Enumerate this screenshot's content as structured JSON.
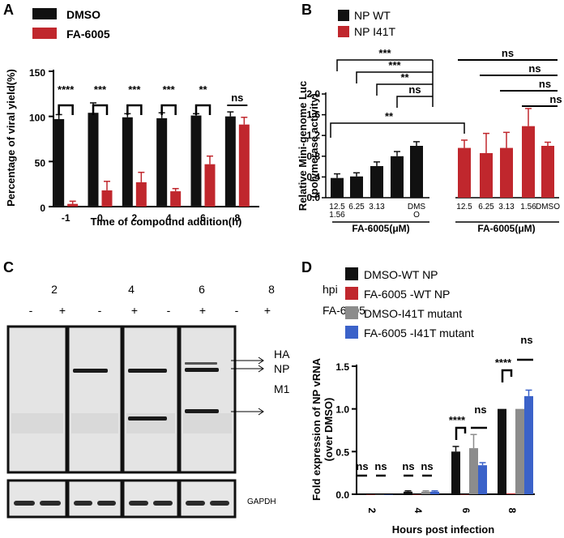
{
  "panels": {
    "a": "A",
    "b": "B",
    "c": "C",
    "d": "D"
  },
  "colors": {
    "black": "#111111",
    "red": "#c0272d",
    "gray": "#8c8c8c",
    "blue": "#3b62c9"
  },
  "chart_data": [
    {
      "id": "A",
      "type": "bar",
      "xlabel": "Time of compound addition(h)",
      "ylabel": "Percentage of viral yield(%)",
      "ylim": [
        0,
        150
      ],
      "yticks": [
        "0",
        "50",
        "100",
        "150"
      ],
      "categories": [
        "-1",
        "0",
        "2",
        "4",
        "6",
        "8"
      ],
      "series": [
        {
          "name": "DMSO",
          "color": "#111111",
          "values": [
            97,
            104,
            99,
            98,
            101,
            100
          ],
          "errors": [
            5,
            11,
            4,
            6,
            2,
            5
          ]
        },
        {
          "name": "FA-6005",
          "color": "#c0272d",
          "values": [
            3,
            18,
            27,
            17,
            47,
            91
          ],
          "errors": [
            3,
            10,
            11,
            3,
            9,
            8
          ]
        }
      ],
      "significance": [
        "****",
        "***",
        "***",
        "***",
        "**",
        "ns"
      ]
    },
    {
      "id": "B",
      "type": "bar",
      "ylabel_line1": "Relative Mini-genome Luc",
      "ylabel_line2": "(polymerase activity)",
      "ylim": [
        0,
        2.0
      ],
      "yticks": [
        "0.0",
        "0.4",
        "0.8",
        "1.2",
        "1.6",
        "2.0"
      ],
      "legend": [
        "NP WT",
        "NP I41T"
      ],
      "groups": [
        {
          "name": "NP WT",
          "color": "#111111",
          "categories": [
            "12.5",
            "6.25",
            "3.13",
            "1.56",
            "DMSO"
          ],
          "values": [
            0.38,
            0.41,
            0.61,
            0.8,
            1.0
          ],
          "errors": [
            0.08,
            0.07,
            0.08,
            0.09,
            0.08
          ],
          "tick_labels": [
            "12.5",
            "6.25",
            "3.13",
            "",
            "DMS"
          ],
          "tick_labels_2": [
            "1.56",
            "",
            "",
            "",
            "O"
          ],
          "xlabel": "FA-6005(μM)"
        },
        {
          "name": "NP I41T",
          "color": "#c0272d",
          "categories": [
            "12.5",
            "6.25",
            "3.13",
            "1.56",
            "DMSO"
          ],
          "values": [
            0.96,
            0.86,
            0.96,
            1.38,
            1.0
          ],
          "errors": [
            0.15,
            0.38,
            0.3,
            0.34,
            0.07
          ],
          "tick_labels": [
            "12.5",
            "6.25",
            "3.13",
            "1.56",
            "DMSO"
          ],
          "xlabel": "FA-6005(μM)"
        }
      ],
      "significance_left": [
        "***",
        "***",
        "**",
        "ns",
        "**"
      ],
      "significance_right": [
        "ns",
        "ns",
        "ns",
        "ns"
      ]
    },
    {
      "id": "D",
      "type": "bar",
      "xlabel": "Hours post infection",
      "ylabel_line1": "Fold expression of NP vRNA",
      "ylabel_line2": "(over DMSO)",
      "ylim": [
        0,
        1.5
      ],
      "yticks": [
        "0.0",
        "0.5",
        "1.0",
        "1.5"
      ],
      "categories": [
        "2",
        "4",
        "6",
        "8"
      ],
      "series": [
        {
          "name": "DMSO-WT NP",
          "color": "#111111",
          "values": [
            0.0,
            0.03,
            0.5,
            1.0
          ],
          "errors": [
            0,
            0.01,
            0.06,
            0.0
          ]
        },
        {
          "name": "FA-6005 -WT NP",
          "color": "#c0272d",
          "values": [
            0.0,
            0.0,
            0.0,
            0.01
          ],
          "errors": [
            0,
            0,
            0,
            0
          ]
        },
        {
          "name": "DMSO-I41T mutant",
          "color": "#8c8c8c",
          "values": [
            0.0,
            0.03,
            0.54,
            1.0
          ],
          "errors": [
            0,
            0.01,
            0.16,
            0.0
          ]
        },
        {
          "name": "FA-6005 -I41T  mutant",
          "color": "#3b62c9",
          "values": [
            0.0,
            0.03,
            0.34,
            1.15
          ],
          "errors": [
            0,
            0.01,
            0.03,
            0.07
          ]
        }
      ],
      "significance_1": [
        "ns",
        "ns",
        "****",
        "****"
      ],
      "significance_2": [
        "ns",
        "ns",
        "ns",
        "ns"
      ]
    }
  ],
  "blot": {
    "hpi_label": "hpi",
    "hours": [
      "2",
      "4",
      "6",
      "8"
    ],
    "treat_label": "FA-6005",
    "signs": [
      "-",
      "+",
      "-",
      "+",
      "-",
      "+",
      "-",
      "+"
    ],
    "band_labels": [
      "HA",
      "NP",
      "M1"
    ],
    "loading_label": "GAPDH"
  }
}
